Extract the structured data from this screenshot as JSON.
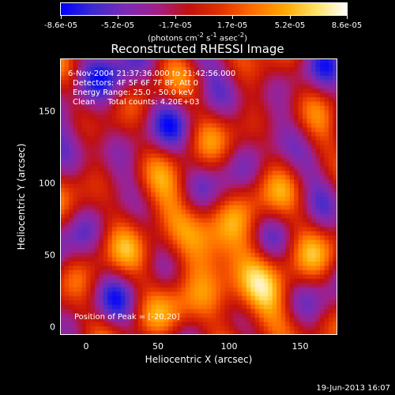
{
  "colorbar": {
    "ticks": [
      "-8.6e-05",
      "-5.2e-05",
      "-1.7e-05",
      "1.7e-05",
      "5.2e-05",
      "8.6e-05"
    ],
    "units_text": "(photons cm",
    "units_html": "(photons cm<sup>-2</sup> s<sup>-1</sup> asec<sup>-2</sup>)",
    "colors": [
      "#0000ff",
      "#3b2bd0",
      "#7a2bb5",
      "#a0208c",
      "#c01010",
      "#e03000",
      "#ff6a00",
      "#ffa500",
      "#ffe060",
      "#ffffff"
    ]
  },
  "chart_data": {
    "type": "heatmap",
    "title": "Reconstructed RHESSI Image",
    "xlabel": "Heliocentric X (arcsec)",
    "ylabel": "Heliocentric Y (arcsec)",
    "xlim": [
      -20,
      172
    ],
    "ylim": [
      -4,
      187
    ],
    "xticks": [
      "0",
      "50",
      "100",
      "150"
    ],
    "yticks": [
      "0",
      "50",
      "100",
      "150"
    ],
    "vmin": -8.6e-05,
    "vmax": 8.6e-05,
    "peak": [
      -20,
      20
    ],
    "annotations": [
      "6-Nov-2004 21:37:36.000 to 21:42:56.000",
      "Detectors: 4F 5F 6F 7F 8F, Att 0",
      "Energy Range: 25.0 - 50.0 keV",
      "Clean     Total counts: 4.20E+03"
    ],
    "peak_label": "Position of Peak = [-20,20]"
  },
  "footer": "19-Jun-2013 16:07"
}
